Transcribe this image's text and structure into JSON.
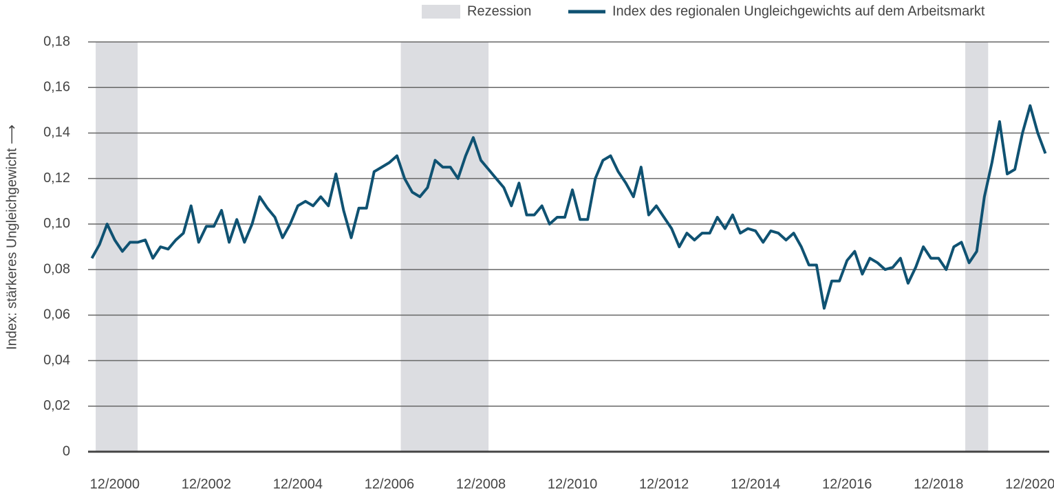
{
  "chart_data": {
    "type": "line",
    "y_label": "Index: stärkeres Ungleichgewicht ⟶",
    "recessions": {
      "name": "Rezession",
      "color": "#dcdde1",
      "periods": [
        [
          "07/2000",
          "06/2001"
        ],
        [
          "03/2007",
          "02/2009"
        ],
        [
          "07/2019",
          "01/2020"
        ]
      ]
    },
    "x": [
      "06/2000",
      "08/2000",
      "10/2000",
      "12/2000",
      "02/2001",
      "04/2001",
      "06/2001",
      "08/2001",
      "10/2001",
      "12/2001",
      "02/2002",
      "04/2002",
      "06/2002",
      "08/2002",
      "10/2002",
      "12/2002",
      "02/2003",
      "04/2003",
      "06/2003",
      "08/2003",
      "10/2003",
      "12/2003",
      "02/2004",
      "04/2004",
      "06/2004",
      "08/2004",
      "10/2004",
      "12/2004",
      "02/2005",
      "04/2005",
      "06/2005",
      "08/2005",
      "10/2005",
      "12/2005",
      "02/2006",
      "04/2006",
      "06/2006",
      "08/2006",
      "10/2006",
      "12/2006",
      "02/2007",
      "04/2007",
      "06/2007",
      "08/2007",
      "10/2007",
      "12/2007",
      "02/2008",
      "04/2008",
      "06/2008",
      "08/2008",
      "10/2008",
      "12/2008",
      "02/2009",
      "04/2009",
      "06/2009",
      "08/2009",
      "10/2009",
      "12/2009",
      "02/2010",
      "04/2010",
      "06/2010",
      "08/2010",
      "10/2010",
      "12/2010",
      "02/2011",
      "04/2011",
      "06/2011",
      "08/2011",
      "10/2011",
      "12/2011",
      "02/2012",
      "04/2012",
      "06/2012",
      "08/2012",
      "10/2012",
      "12/2012",
      "02/2013",
      "04/2013",
      "06/2013",
      "08/2013",
      "10/2013",
      "12/2013",
      "02/2014",
      "04/2014",
      "06/2014",
      "08/2014",
      "10/2014",
      "12/2014",
      "02/2015",
      "04/2015",
      "06/2015",
      "08/2015",
      "10/2015",
      "12/2015",
      "02/2016",
      "04/2016",
      "06/2016",
      "08/2016",
      "10/2016",
      "12/2016",
      "02/2017",
      "04/2017",
      "06/2017",
      "08/2017",
      "10/2017",
      "12/2017",
      "02/2018",
      "04/2018",
      "06/2018",
      "08/2018",
      "10/2018",
      "12/2018",
      "02/2019",
      "04/2019",
      "06/2019",
      "08/2019",
      "10/2019",
      "12/2019",
      "02/2020",
      "04/2020",
      "06/2020",
      "08/2020",
      "10/2020",
      "12/2020",
      "02/2021",
      "04/2021"
    ],
    "series": [
      {
        "name": "Index des regionalen Ungleichgewichts auf dem Arbeitsmarkt",
        "color": "#0f5272",
        "values": [
          0.085,
          0.091,
          0.1,
          0.093,
          0.088,
          0.092,
          0.092,
          0.093,
          0.085,
          0.09,
          0.089,
          0.093,
          0.096,
          0.108,
          0.092,
          0.099,
          0.099,
          0.106,
          0.092,
          0.102,
          0.092,
          0.1,
          0.112,
          0.107,
          0.103,
          0.094,
          0.1,
          0.108,
          0.11,
          0.108,
          0.112,
          0.108,
          0.122,
          0.106,
          0.094,
          0.107,
          0.107,
          0.123,
          0.125,
          0.127,
          0.13,
          0.12,
          0.114,
          0.112,
          0.116,
          0.128,
          0.125,
          0.125,
          0.12,
          0.13,
          0.138,
          0.128,
          0.124,
          0.12,
          0.116,
          0.108,
          0.118,
          0.104,
          0.104,
          0.108,
          0.1,
          0.103,
          0.103,
          0.115,
          0.102,
          0.102,
          0.12,
          0.128,
          0.13,
          0.123,
          0.118,
          0.112,
          0.125,
          0.104,
          0.108,
          0.103,
          0.098,
          0.09,
          0.096,
          0.093,
          0.096,
          0.096,
          0.103,
          0.098,
          0.104,
          0.096,
          0.098,
          0.097,
          0.092,
          0.097,
          0.096,
          0.093,
          0.096,
          0.09,
          0.082,
          0.082,
          0.063,
          0.075,
          0.075,
          0.084,
          0.088,
          0.078,
          0.085,
          0.083,
          0.08,
          0.081,
          0.085,
          0.074,
          0.081,
          0.09,
          0.085,
          0.085,
          0.08,
          0.09,
          0.092,
          0.083,
          0.088,
          0.112,
          0.127,
          0.145,
          0.122,
          0.124,
          0.14,
          0.152,
          0.14,
          0.131
        ]
      }
    ],
    "xlim": [
      "05/2000",
      "05/2021"
    ],
    "xticks": [
      "12/2000",
      "12/2002",
      "12/2004",
      "12/2006",
      "12/2008",
      "12/2010",
      "12/2012",
      "12/2014",
      "12/2016",
      "12/2018",
      "12/2020"
    ],
    "ylim": [
      0,
      0.18
    ],
    "yticks": [
      0,
      {
        "value": 0.02,
        "label": "0,02"
      },
      {
        "value": 0.04,
        "label": "0,04"
      },
      {
        "value": 0.06,
        "label": "0,06"
      },
      {
        "value": 0.08,
        "label": "0,08"
      },
      {
        "value": 0.1,
        "label": "0,10"
      },
      {
        "value": 0.12,
        "label": "0,12"
      },
      {
        "value": 0.14,
        "label": "0,14"
      },
      {
        "value": 0.16,
        "label": "0,16"
      },
      {
        "value": 0.18,
        "label": "0,18"
      }
    ],
    "grid": true
  }
}
